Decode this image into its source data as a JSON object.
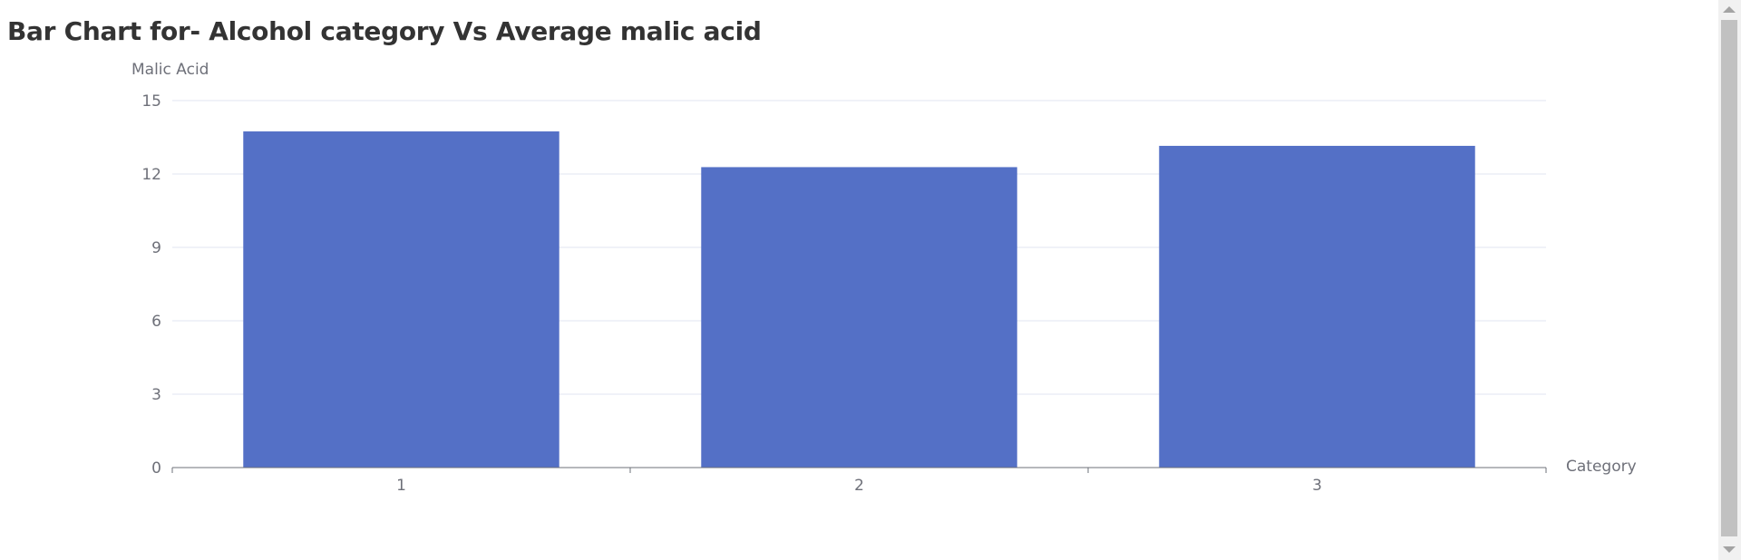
{
  "chart_data": {
    "type": "bar",
    "title": "Bar Chart for- Alcohol category Vs Average malic acid",
    "xlabel": "Category",
    "ylabel": "Malic Acid",
    "categories": [
      "1",
      "2",
      "3"
    ],
    "values": [
      13.74,
      12.28,
      13.15
    ],
    "ylim": [
      0,
      15
    ],
    "yticks": [
      "0",
      "3",
      "6",
      "9",
      "12",
      "15"
    ],
    "grid": true,
    "bar_color": "#5470c6",
    "grid_color": "#e0e6f1",
    "axis_color": "#6e7079"
  }
}
